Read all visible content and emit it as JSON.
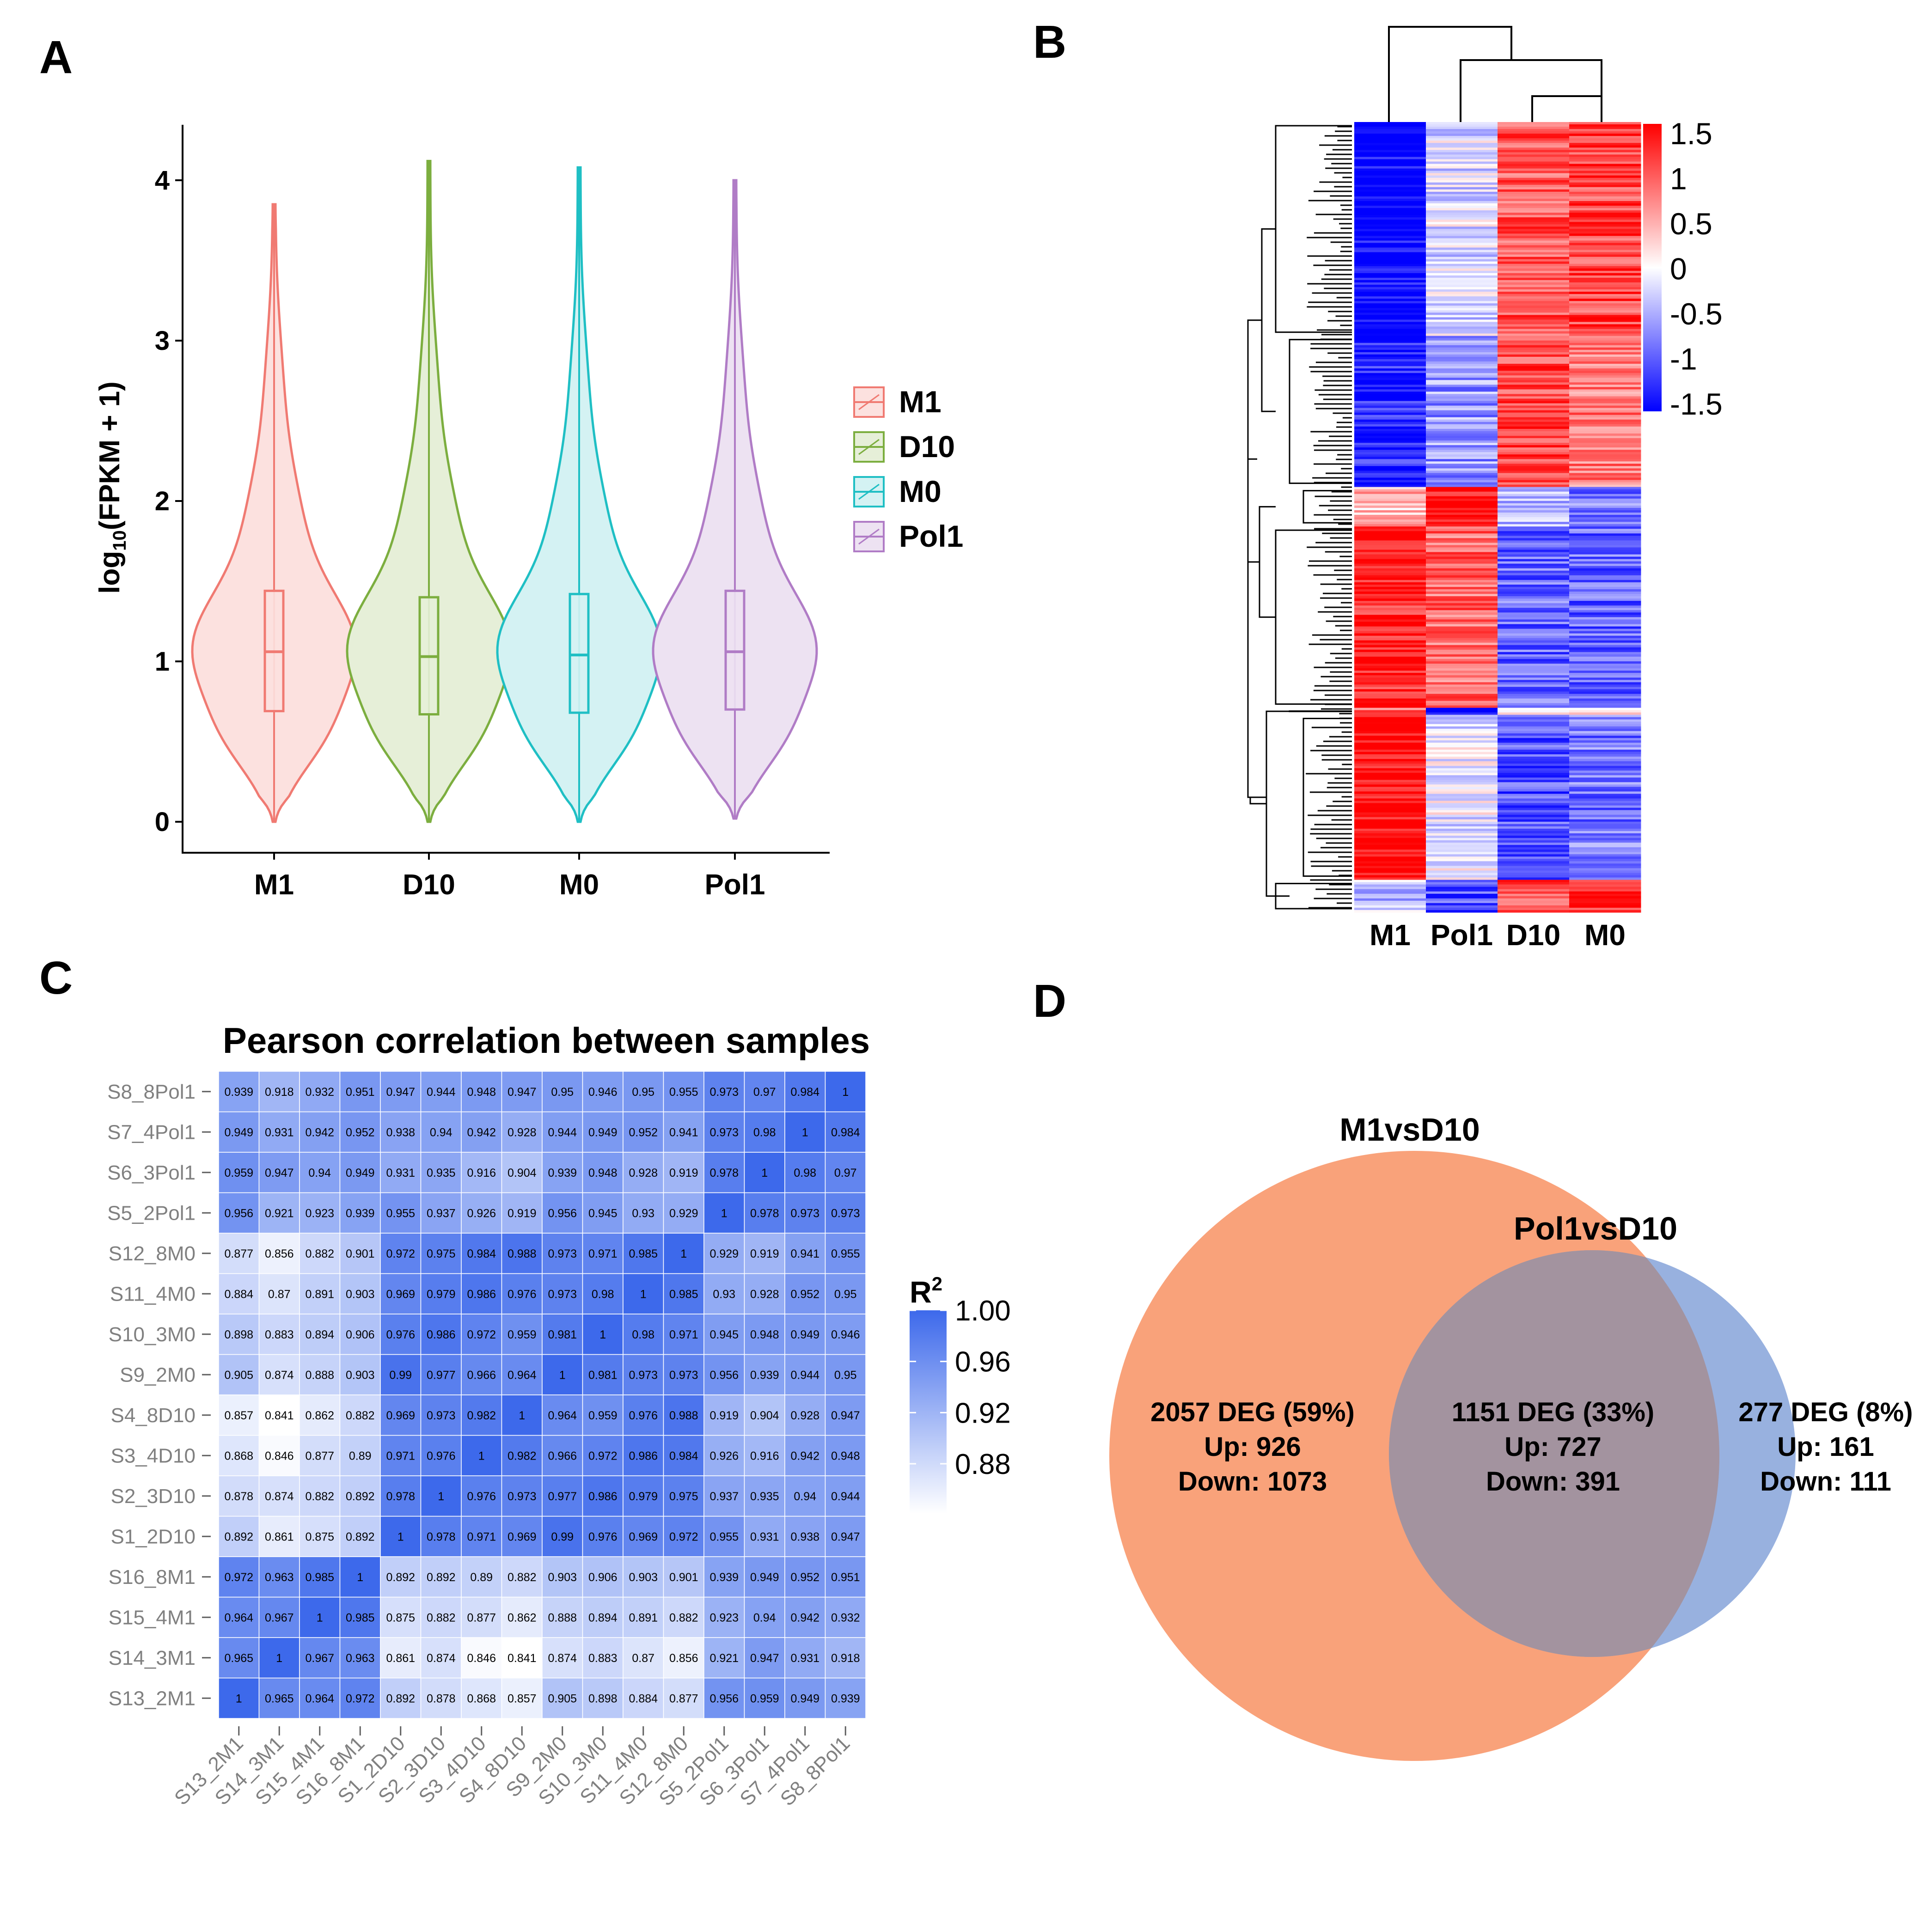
{
  "panels": {
    "A": {
      "label": "A"
    },
    "B": {
      "label": "B"
    },
    "C": {
      "label": "C"
    },
    "D": {
      "label": "D"
    }
  },
  "chart_data": [
    {
      "id": "A",
      "type": "violin",
      "title": "",
      "xlabel": "",
      "ylabel_main": "log",
      "ylabel_sub": "10",
      "ylabel_rest": "(FPKM + 1)",
      "ylim": [
        0,
        4.35
      ],
      "yticks": [
        0,
        1,
        2,
        3,
        4
      ],
      "categories": [
        "M1",
        "D10",
        "M0",
        "Pol1"
      ],
      "colors": [
        "#F07A72",
        "#7CAE3F",
        "#1FBFC4",
        "#B07CC6"
      ],
      "fills": [
        "#FCE1DF",
        "#E6EFD8",
        "#D4F2F3",
        "#EDE2F2"
      ],
      "legend_title": "",
      "legend": [
        "M1",
        "D10",
        "M0",
        "Pol1"
      ],
      "legend_position": "right",
      "max": [
        3.85,
        4.12,
        4.08,
        4.0
      ],
      "whisker_top": [
        2.56,
        2.47,
        2.51,
        2.54
      ],
      "q3": [
        1.44,
        1.4,
        1.42,
        1.44
      ],
      "median": [
        1.06,
        1.03,
        1.04,
        1.06
      ],
      "q1": [
        0.69,
        0.67,
        0.68,
        0.7
      ],
      "min": [
        0.0,
        0.0,
        0.0,
        0.02
      ]
    },
    {
      "id": "B",
      "type": "heatmap",
      "columns": [
        "M1",
        "Pol1",
        "D10",
        "M0"
      ],
      "colorbar_ticks": [
        "1.5",
        "1",
        "0.5",
        "0",
        "-0.5",
        "-1",
        "-1.5"
      ],
      "colorbar_range": [
        -1.5,
        1.5
      ],
      "colors": {
        "high": "#FF0000",
        "mid": "#FFFFFF",
        "low": "#0000FF"
      },
      "row_blocks": [
        {
          "weight": 27,
          "values": [
            -1.5,
            -0.2,
            1.0,
            1.1
          ]
        },
        {
          "weight": 19,
          "values": [
            -1.3,
            -0.6,
            1.1,
            0.8
          ]
        },
        {
          "weight": 5,
          "values": [
            0.4,
            1.4,
            -0.4,
            -0.8
          ]
        },
        {
          "weight": 23,
          "values": [
            1.3,
            0.9,
            -0.9,
            -0.9
          ]
        },
        {
          "weight": 1,
          "values": [
            0.9,
            -1.4,
            0.3,
            0.4
          ]
        },
        {
          "weight": 21,
          "values": [
            1.5,
            -0.1,
            -1.0,
            -0.8
          ]
        },
        {
          "weight": 4,
          "values": [
            -0.4,
            -1.0,
            1.0,
            1.3
          ]
        }
      ]
    },
    {
      "id": "C",
      "type": "heatmap",
      "title": "Pearson correlation between samples",
      "legend_title": "R",
      "legend_title_sup": "2",
      "colorbar_ticks": [
        1.0,
        0.96,
        0.92,
        0.88
      ],
      "colorbar_tick_labels": [
        "1.00",
        "0.96",
        "0.92",
        "0.88"
      ],
      "colorbar_range": [
        0.841,
        1.0
      ],
      "colors": {
        "high": "#3D69EB",
        "low": "#FFFFFF"
      },
      "samples": [
        "S13_2M1",
        "S14_3M1",
        "S15_4M1",
        "S16_8M1",
        "S1_2D10",
        "S2_3D10",
        "S3_4D10",
        "S4_8D10",
        "S9_2M0",
        "S10_3M0",
        "S11_4M0",
        "S12_8M0",
        "S5_2Pol1",
        "S6_3Pol1",
        "S7_4Pol1",
        "S8_8Pol1"
      ],
      "matrix": [
        [
          "1",
          "0.965",
          "0.964",
          "0.972",
          "0.892",
          "0.878",
          "0.868",
          "0.857",
          "0.905",
          "0.898",
          "0.884",
          "0.877",
          "0.956",
          "0.959",
          "0.949",
          "0.939"
        ],
        [
          "0.965",
          "1",
          "0.967",
          "0.963",
          "0.861",
          "0.874",
          "0.846",
          "0.841",
          "0.874",
          "0.883",
          "0.87",
          "0.856",
          "0.921",
          "0.947",
          "0.931",
          "0.918"
        ],
        [
          "0.964",
          "0.967",
          "1",
          "0.985",
          "0.875",
          "0.882",
          "0.877",
          "0.862",
          "0.888",
          "0.894",
          "0.891",
          "0.882",
          "0.923",
          "0.94",
          "0.942",
          "0.932"
        ],
        [
          "0.972",
          "0.963",
          "0.985",
          "1",
          "0.892",
          "0.892",
          "0.89",
          "0.882",
          "0.903",
          "0.906",
          "0.903",
          "0.901",
          "0.939",
          "0.949",
          "0.952",
          "0.951"
        ],
        [
          "0.892",
          "0.861",
          "0.875",
          "0.892",
          "1",
          "0.978",
          "0.971",
          "0.969",
          "0.99",
          "0.976",
          "0.969",
          "0.972",
          "0.955",
          "0.931",
          "0.938",
          "0.947"
        ],
        [
          "0.878",
          "0.874",
          "0.882",
          "0.892",
          "0.978",
          "1",
          "0.976",
          "0.973",
          "0.977",
          "0.986",
          "0.979",
          "0.975",
          "0.937",
          "0.935",
          "0.94",
          "0.944"
        ],
        [
          "0.868",
          "0.846",
          "0.877",
          "0.89",
          "0.971",
          "0.976",
          "1",
          "0.982",
          "0.966",
          "0.972",
          "0.986",
          "0.984",
          "0.926",
          "0.916",
          "0.942",
          "0.948"
        ],
        [
          "0.857",
          "0.841",
          "0.862",
          "0.882",
          "0.969",
          "0.973",
          "0.982",
          "1",
          "0.964",
          "0.959",
          "0.976",
          "0.988",
          "0.919",
          "0.904",
          "0.928",
          "0.947"
        ],
        [
          "0.905",
          "0.874",
          "0.888",
          "0.903",
          "0.99",
          "0.977",
          "0.966",
          "0.964",
          "1",
          "0.981",
          "0.973",
          "0.973",
          "0.956",
          "0.939",
          "0.944",
          "0.95"
        ],
        [
          "0.898",
          "0.883",
          "0.894",
          "0.906",
          "0.976",
          "0.986",
          "0.972",
          "0.959",
          "0.981",
          "1",
          "0.98",
          "0.971",
          "0.945",
          "0.948",
          "0.949",
          "0.946"
        ],
        [
          "0.884",
          "0.87",
          "0.891",
          "0.903",
          "0.969",
          "0.979",
          "0.986",
          "0.976",
          "0.973",
          "0.98",
          "1",
          "0.985",
          "0.93",
          "0.928",
          "0.952",
          "0.95"
        ],
        [
          "0.877",
          "0.856",
          "0.882",
          "0.901",
          "0.972",
          "0.975",
          "0.984",
          "0.988",
          "0.973",
          "0.971",
          "0.985",
          "1",
          "0.929",
          "0.919",
          "0.941",
          "0.955"
        ],
        [
          "0.956",
          "0.921",
          "0.923",
          "0.939",
          "0.955",
          "0.937",
          "0.926",
          "0.919",
          "0.956",
          "0.945",
          "0.93",
          "0.929",
          "1",
          "0.978",
          "0.973",
          "0.973"
        ],
        [
          "0.959",
          "0.947",
          "0.94",
          "0.949",
          "0.931",
          "0.935",
          "0.916",
          "0.904",
          "0.939",
          "0.948",
          "0.928",
          "0.919",
          "0.978",
          "1",
          "0.98",
          "0.97"
        ],
        [
          "0.949",
          "0.931",
          "0.942",
          "0.952",
          "0.938",
          "0.94",
          "0.942",
          "0.928",
          "0.944",
          "0.949",
          "0.952",
          "0.941",
          "0.973",
          "0.98",
          "1",
          "0.984"
        ],
        [
          "0.939",
          "0.918",
          "0.932",
          "0.951",
          "0.947",
          "0.944",
          "0.948",
          "0.947",
          "0.95",
          "0.946",
          "0.95",
          "0.955",
          "0.973",
          "0.97",
          "0.984",
          "1"
        ]
      ]
    },
    {
      "id": "D",
      "type": "venn",
      "sets": [
        {
          "name": "M1vsD10",
          "color": "#F9A27A"
        },
        {
          "name": "Pol1vsD10",
          "color": "#7B9BD6"
        }
      ],
      "regions": [
        {
          "line1": "2057 DEG (59%)",
          "line2": "Up: 926",
          "line3": "Down: 1073"
        },
        {
          "line1": "1151 DEG (33%)",
          "line2": "Up: 727",
          "line3": "Down: 391"
        },
        {
          "line1": "277 DEG (8%)",
          "line2": "Up: 161",
          "line3": "Down: 111"
        }
      ],
      "intersection_color": "#A3939F"
    }
  ]
}
